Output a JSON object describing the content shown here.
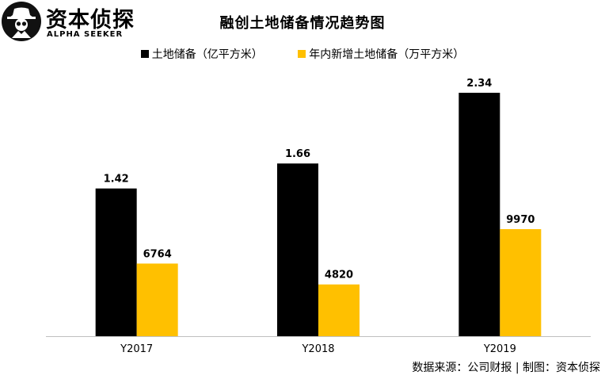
{
  "brand": {
    "name": "资本侦探",
    "subtitle": "ALPHA SEEKER"
  },
  "colors": {
    "series1": "#000000",
    "series2": "#FFC000",
    "axis": "#BFBFBF"
  },
  "chart_data": {
    "type": "bar",
    "title": "融创土地储备情况趋势图",
    "categories": [
      "Y2017",
      "Y2018",
      "Y2019"
    ],
    "series": [
      {
        "name": "土地储备（亿平方米）",
        "values": [
          1.42,
          1.66,
          2.34
        ],
        "labels": [
          "1.42",
          "1.66",
          "2.34"
        ],
        "color": "#000000"
      },
      {
        "name": "年内新增土地储备（万平方米）",
        "values": [
          6764,
          4820,
          9970
        ],
        "labels": [
          "6764",
          "4820",
          "9970"
        ],
        "color": "#FFC000"
      }
    ],
    "legend_position": "top",
    "grid": false,
    "xlabel": "",
    "ylabel": ""
  },
  "source": {
    "data_source": "数据来源：公司财报",
    "separator": "|",
    "made_by": "制图：资本侦探"
  }
}
